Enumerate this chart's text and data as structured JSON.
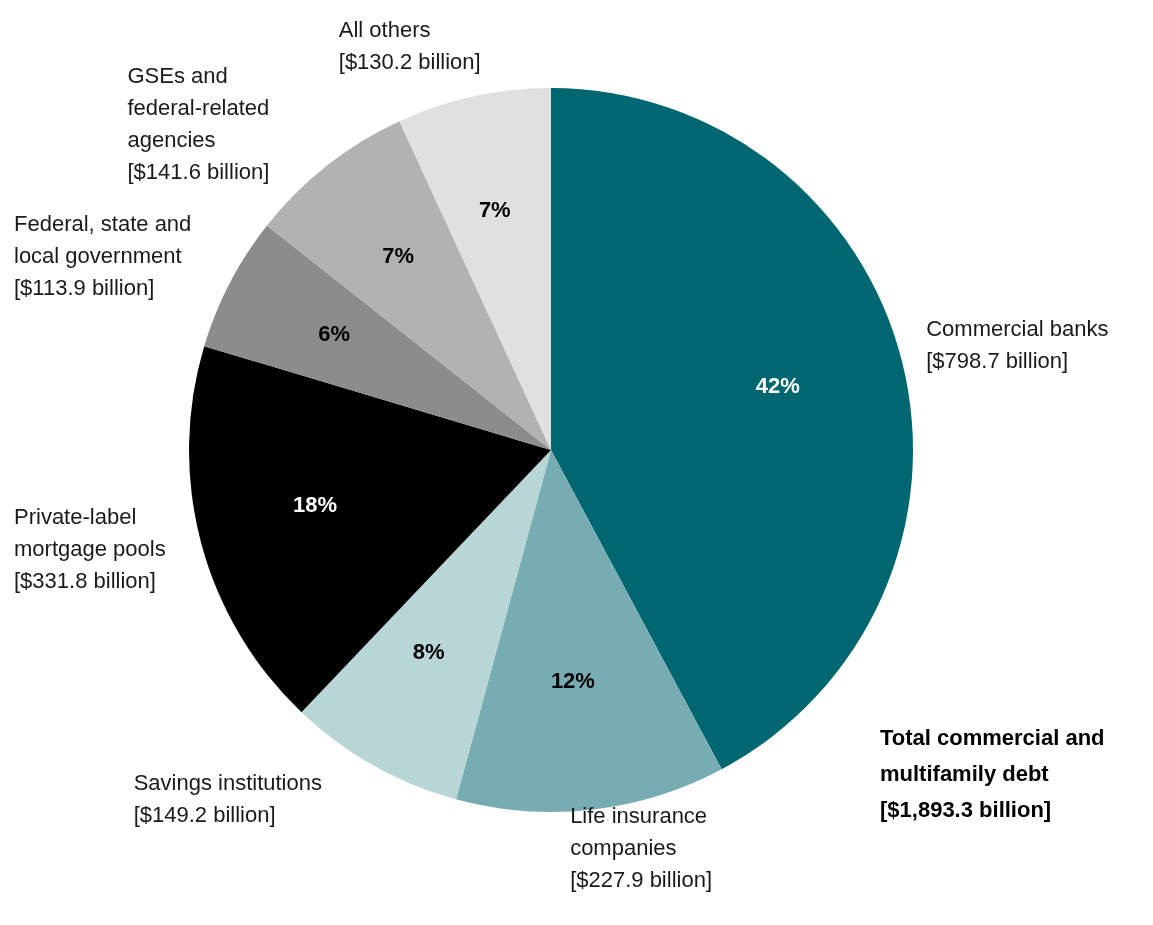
{
  "chart_data": {
    "type": "pie",
    "categories": [
      "Commercial banks",
      "Life insurance companies",
      "Savings institutions",
      "Private-label mortgage pools",
      "Federal, state and local government",
      "GSEs and federal-related agencies",
      "All others"
    ],
    "values": [
      798.7,
      227.9,
      149.2,
      331.8,
      113.9,
      141.6,
      130.2
    ],
    "colors": [
      "#00666f",
      "#77adb2",
      "#b8d6d6",
      "#000000",
      "#8c8c8c",
      "#b2b2b2",
      "#e0e0e0"
    ],
    "value_labels": [
      "[$798.7 billion]",
      "[$227.9 billion]",
      "[$149.2 billion]",
      "[$331.8 billion]",
      "[$113.9 billion]",
      "[$141.6 billion]",
      "[$130.2 billion]"
    ],
    "annotations": [
      {
        "text": "42%",
        "x": "Commercial banks"
      },
      {
        "text": "12%",
        "x": "Life insurance companies"
      },
      {
        "text": "8%",
        "x": "Savings institutions"
      },
      {
        "text": "18%",
        "x": "Private-label mortgage pools"
      },
      {
        "text": "6%",
        "x": "Federal, state and local government"
      },
      {
        "text": "7%",
        "x": "GSEs and federal-related agencies"
      },
      {
        "text": "7%",
        "x": "All others"
      },
      "Total commercial and multifamily debt",
      "[$1,893.3  billion]"
    ],
    "legend": false
  }
}
